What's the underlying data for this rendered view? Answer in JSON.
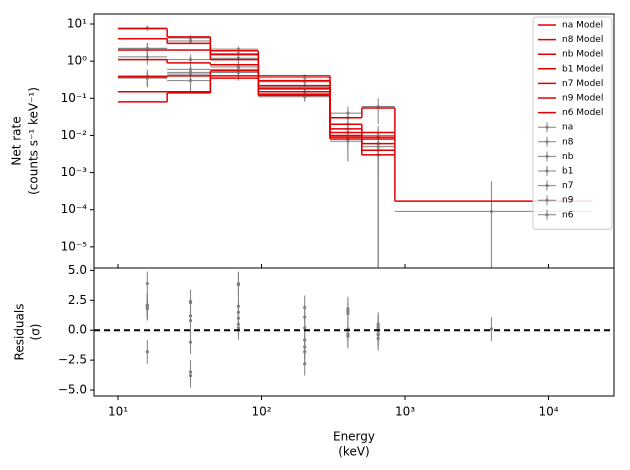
{
  "chart_data": [
    {
      "type": "step-spectrum",
      "ylabel": [
        "Net rate",
        "(counts s⁻¹ keV⁻¹)"
      ],
      "log_x": true,
      "log_y": true,
      "xlim": [
        6.8,
        28600
      ],
      "ylim": [
        2.7e-06,
        18.6
      ],
      "xticks": [
        {
          "value": 10,
          "label": "10¹"
        },
        {
          "value": 100,
          "label": "10²"
        },
        {
          "value": 1000,
          "label": "10³"
        },
        {
          "value": 10000,
          "label": "10⁴"
        }
      ],
      "yticks": [
        {
          "value": 10,
          "label": "10¹"
        },
        {
          "value": 1,
          "label": "10⁰"
        },
        {
          "value": 0.1,
          "label": "10⁻¹"
        },
        {
          "value": 0.01,
          "label": "10⁻²"
        },
        {
          "value": 0.001,
          "label": "10⁻³"
        },
        {
          "value": 0.0001,
          "label": "10⁻⁴"
        },
        {
          "value": 1e-05,
          "label": "10⁻⁵"
        }
      ],
      "bins": [
        10,
        22,
        44,
        95,
        300,
        500,
        850,
        20000
      ],
      "x": [
        16,
        32,
        69,
        200,
        400,
        650,
        4000
      ],
      "legend": "upper right",
      "model_color": "#e00000",
      "data_color": "#808080",
      "series": [
        {
          "model_name": "na Model",
          "name": "na",
          "model": [
            7.5,
            4.5,
            1.9,
            0.4,
            0.03,
            0.055,
            0.00017
          ],
          "values": [
            7.8,
            4.2,
            2.1,
            0.36,
            0.04,
            0.06,
            9e-05
          ],
          "errors": [
            1.2,
            0.8,
            0.4,
            0.08,
            0.02,
            0.04,
            0.0005
          ]
        },
        {
          "model_name": "n8 Model",
          "name": "n8",
          "model": [
            4.0,
            3.0,
            1.5,
            0.3,
            0.02,
            0.012,
            null
          ],
          "values": [
            2.2,
            3.5,
            1.6,
            0.28,
            0.03,
            0.01,
            null
          ],
          "errors": [
            0.8,
            0.6,
            0.3,
            0.05,
            0.015,
            0.008,
            null
          ]
        },
        {
          "model_name": "nb Model",
          "name": "nb",
          "model": [
            2.0,
            2.0,
            1.1,
            0.22,
            0.015,
            0.009,
            null
          ],
          "values": [
            2.2,
            0.5,
            1.2,
            0.2,
            0.02,
            0.006,
            null
          ],
          "errors": [
            0.9,
            0.3,
            0.3,
            0.05,
            0.012,
            0.006,
            null
          ]
        },
        {
          "model_name": "b1 Model",
          "name": "b1",
          "model": [
            1.1,
            0.9,
            0.8,
            0.18,
            0.012,
            0.008,
            null
          ],
          "values": [
            1.3,
            1.1,
            0.7,
            0.19,
            0.015,
            0.009,
            null
          ],
          "errors": [
            0.5,
            0.4,
            0.3,
            0.05,
            0.01,
            0.006,
            null
          ]
        },
        {
          "model_name": "n7 Model",
          "name": "n7",
          "model": [
            0.38,
            0.4,
            0.55,
            0.15,
            0.01,
            0.006,
            null
          ],
          "values": [
            0.4,
            0.45,
            0.6,
            0.15,
            0.012,
            0.005,
            null
          ],
          "errors": [
            0.2,
            0.2,
            0.2,
            0.04,
            0.008,
            0.004,
            null
          ]
        },
        {
          "model_name": "n9 Model",
          "name": "n9",
          "model": [
            0.15,
            0.15,
            0.4,
            0.13,
            0.009,
            0.004,
            null
          ],
          "values": [
            0.35,
            0.3,
            0.5,
            0.12,
            0.008,
            0.004,
            null
          ],
          "errors": [
            0.15,
            0.15,
            0.2,
            0.03,
            0.006,
            0.004,
            null
          ]
        },
        {
          "model_name": "n6 Model",
          "name": "n6",
          "model": [
            0.08,
            0.14,
            0.35,
            0.12,
            0.008,
            0.003,
            null
          ],
          "values": [
            0.36,
            0.6,
            0.5,
            0.11,
            0.007,
            0.003,
            null
          ],
          "errors": [
            0.15,
            0.25,
            0.2,
            0.03,
            0.005,
            0.003,
            null
          ]
        }
      ]
    },
    {
      "type": "residuals",
      "xlabel": [
        "Energy",
        "(keV)"
      ],
      "ylabel": [
        "Residuals",
        "(σ)"
      ],
      "ylim": [
        -5.5,
        5.2
      ],
      "yticks": [
        {
          "value": 5,
          "label": "5.0"
        },
        {
          "value": 2.5,
          "label": "2.5"
        },
        {
          "value": 0,
          "label": "0.0"
        },
        {
          "value": -2.5,
          "label": "−2.5"
        },
        {
          "value": -5,
          "label": "−5.0"
        }
      ],
      "hline": 0,
      "residual_error": 1,
      "color": "#808080",
      "series": [
        {
          "values": [
            1.9,
            -1.0,
            1.5,
            -1.8,
            1.8,
            0.5,
            0.1
          ]
        },
        {
          "values": [
            -1.8,
            2.4,
            1.0,
            -0.8,
            1.4,
            -0.3,
            null
          ]
        },
        {
          "values": [
            2.1,
            -3.8,
            2.0,
            -1.4,
            -0.5,
            -0.7,
            null
          ]
        },
        {
          "values": [
            3.9,
            1.2,
            3.8,
            1.9,
            -0.5,
            0.2,
            null
          ]
        },
        {
          "values": [
            2.0,
            0.8,
            0.5,
            0.2,
            1.6,
            -0.4,
            null
          ]
        },
        {
          "values": [
            2.1,
            -3.5,
            0.2,
            -2.8,
            0.1,
            0.0,
            null
          ]
        },
        {
          "values": [
            1.8,
            2.3,
            3.9,
            1.1,
            -0.3,
            0.3,
            null
          ]
        }
      ]
    }
  ]
}
